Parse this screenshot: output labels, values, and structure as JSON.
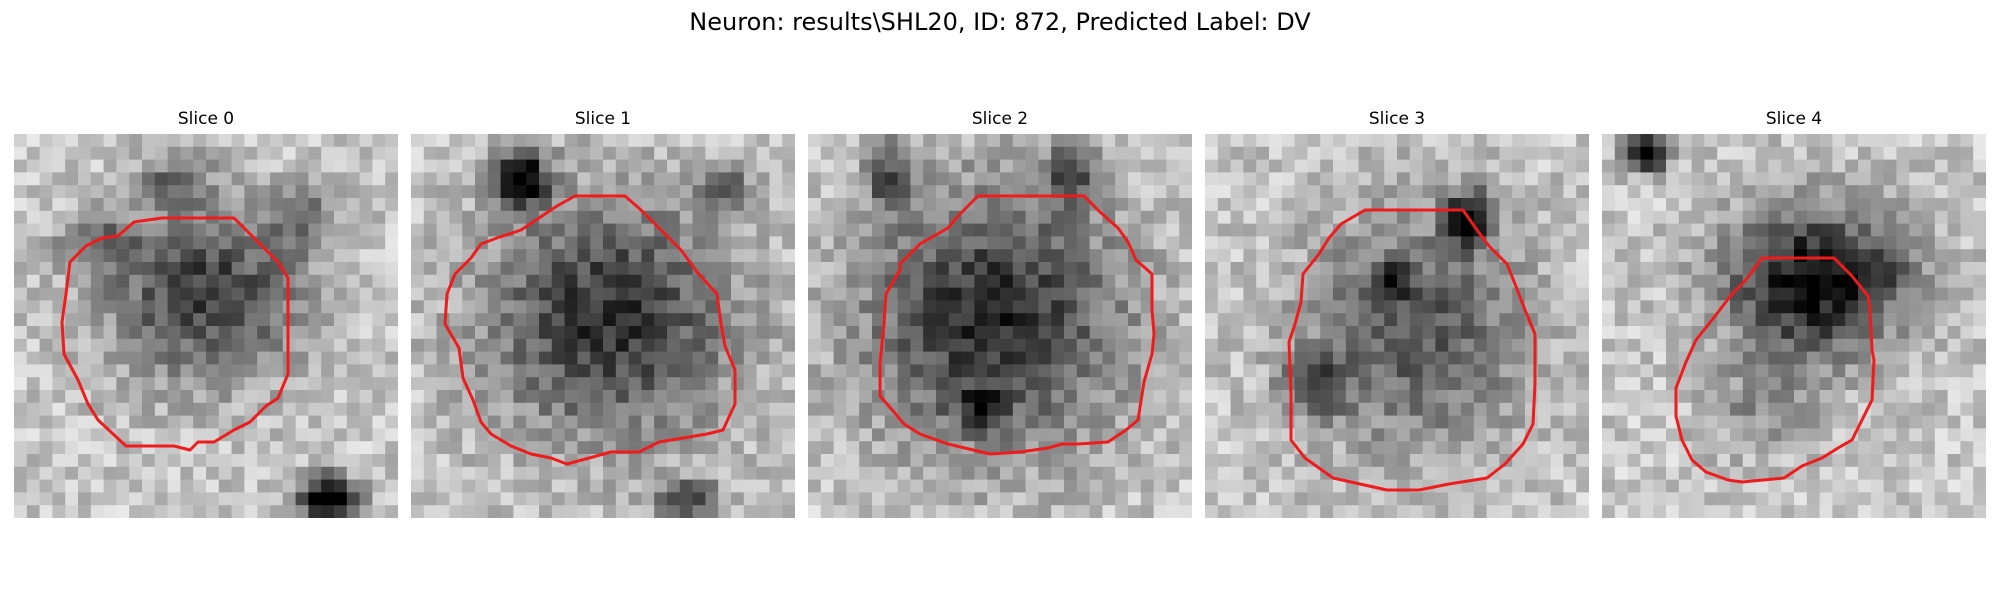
{
  "figure": {
    "title": "Neuron: results\\SHL20, ID: 872, Predicted Label: DV"
  },
  "contour_color": "#ee1c1c",
  "panels": [
    {
      "title": "Slice 0"
    },
    {
      "title": "Slice 1"
    },
    {
      "title": "Slice 2"
    },
    {
      "title": "Slice 3"
    },
    {
      "title": "Slice 4"
    }
  ]
}
